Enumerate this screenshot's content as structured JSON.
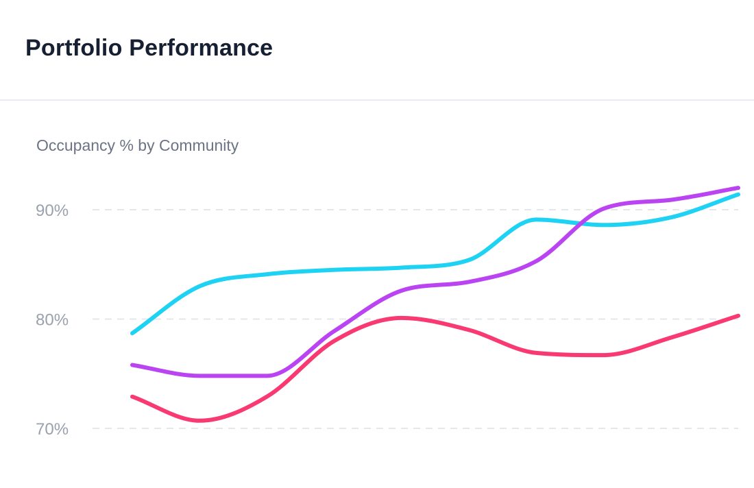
{
  "header": {
    "title": "Portfolio Performance"
  },
  "chart_data": {
    "type": "line",
    "title": "Occupancy % by Community",
    "xlabel": "",
    "ylabel": "",
    "ylim": [
      70,
      90
    ],
    "yticks": [
      {
        "value": 90,
        "label": "90%"
      },
      {
        "value": 80,
        "label": "80%"
      },
      {
        "value": 70,
        "label": "70%"
      }
    ],
    "grid": true,
    "grid_style": "dashed",
    "x_tick_labels_visible": false,
    "x": [
      0,
      1,
      2,
      3,
      4,
      5,
      6,
      7,
      8,
      9
    ],
    "series": [
      {
        "color": "#1ed2f4",
        "values": [
          78.7,
          83.0,
          84.1,
          84.5,
          84.7,
          85.4,
          89.1,
          88.6,
          89.3,
          91.4
        ]
      },
      {
        "color": "#bb44f2",
        "values": [
          75.8,
          74.8,
          74.8,
          78.9,
          82.6,
          83.4,
          85.3,
          90.1,
          90.9,
          92.0
        ]
      },
      {
        "color": "#f93a72",
        "values": [
          72.9,
          70.7,
          72.9,
          78.0,
          80.1,
          79.0,
          76.9,
          76.7,
          78.3,
          80.3
        ]
      }
    ]
  }
}
